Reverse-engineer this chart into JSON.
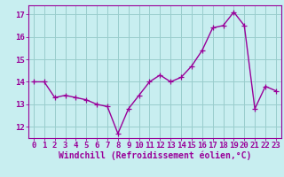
{
  "x": [
    0,
    1,
    2,
    3,
    4,
    5,
    6,
    7,
    8,
    9,
    10,
    11,
    12,
    13,
    14,
    15,
    16,
    17,
    18,
    19,
    20,
    21,
    22,
    23
  ],
  "y": [
    14.0,
    14.0,
    13.3,
    13.4,
    13.3,
    13.2,
    13.0,
    12.9,
    11.7,
    12.8,
    13.4,
    14.0,
    14.3,
    14.0,
    14.2,
    14.7,
    15.4,
    16.4,
    16.5,
    17.1,
    16.5,
    12.8,
    13.8,
    13.6
  ],
  "line_color": "#990099",
  "marker": "+",
  "marker_size": 4,
  "bg_color": "#c8eef0",
  "grid_color": "#99cccc",
  "xlabel": "Windchill (Refroidissement éolien,°C)",
  "ylabel_ticks": [
    12,
    13,
    14,
    15,
    16,
    17
  ],
  "xlim": [
    -0.5,
    23.5
  ],
  "ylim": [
    11.5,
    17.4
  ],
  "tick_color": "#990099",
  "label_color": "#990099",
  "xlabel_fontsize": 7,
  "tick_fontsize": 6.5,
  "linewidth": 1.0
}
